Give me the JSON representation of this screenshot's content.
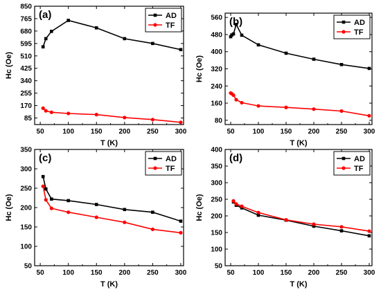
{
  "colors": {
    "AD": "#000000",
    "TF": "#ff0000"
  },
  "chart_data": [
    {
      "type": "line",
      "panel_label": "(a)",
      "xlabel": "T (K)",
      "ylabel": "Hc (Oe)",
      "xlim": [
        40,
        305
      ],
      "ylim": [
        40,
        850
      ],
      "xticks": [
        50,
        100,
        150,
        200,
        250,
        300
      ],
      "yticks": [
        85,
        170,
        255,
        340,
        425,
        510,
        595,
        680,
        765,
        850
      ],
      "legend": "top-right",
      "series": [
        {
          "name": "AD",
          "marker": "square",
          "x": [
            55,
            60,
            70,
            100,
            150,
            200,
            250,
            300
          ],
          "y": [
            572,
            628,
            678,
            753,
            702,
            628,
            595,
            553
          ]
        },
        {
          "name": "TF",
          "marker": "circle",
          "x": [
            55,
            60,
            70,
            100,
            150,
            200,
            250,
            300
          ],
          "y": [
            152,
            134,
            124,
            116,
            108,
            88,
            74,
            55
          ]
        }
      ]
    },
    {
      "type": "line",
      "panel_label": "(b)",
      "xlabel": "T (K)",
      "ylabel": "Hc (Oe)",
      "xlim": [
        40,
        305
      ],
      "ylim": [
        60,
        580
      ],
      "xticks": [
        50,
        100,
        150,
        200,
        250,
        300
      ],
      "yticks": [
        80,
        160,
        240,
        320,
        400,
        480,
        560
      ],
      "legend": "top-right",
      "series": [
        {
          "name": "AD",
          "marker": "square",
          "x": [
            50,
            52,
            55,
            60,
            70,
            100,
            150,
            200,
            250,
            300
          ],
          "y": [
            470,
            478,
            483,
            527,
            477,
            432,
            393,
            365,
            340,
            322
          ]
        },
        {
          "name": "TF",
          "marker": "circle",
          "x": [
            50,
            52,
            55,
            60,
            70,
            100,
            150,
            200,
            250,
            300
          ],
          "y": [
            207,
            204,
            197,
            176,
            162,
            147,
            140,
            132,
            123,
            101
          ]
        }
      ]
    },
    {
      "type": "line",
      "panel_label": "(c)",
      "xlabel": "T (K)",
      "ylabel": "Hc (Oe)",
      "xlim": [
        40,
        305
      ],
      "ylim": [
        50,
        350
      ],
      "xticks": [
        50,
        100,
        150,
        200,
        250,
        300
      ],
      "yticks": [
        50,
        100,
        150,
        200,
        250,
        300,
        350
      ],
      "legend": "top-right",
      "series": [
        {
          "name": "AD",
          "marker": "square",
          "x": [
            55,
            60,
            70,
            100,
            150,
            200,
            250,
            300
          ],
          "y": [
            280,
            248,
            222,
            218,
            208,
            195,
            188,
            165
          ]
        },
        {
          "name": "TF",
          "marker": "circle",
          "x": [
            55,
            60,
            70,
            100,
            150,
            200,
            250,
            300
          ],
          "y": [
            255,
            220,
            198,
            188,
            175,
            162,
            144,
            135
          ]
        }
      ]
    },
    {
      "type": "line",
      "panel_label": "(d)",
      "xlabel": "T (K)",
      "ylabel": "Hc (Oe)",
      "xlim": [
        40,
        305
      ],
      "ylim": [
        50,
        400
      ],
      "xticks": [
        50,
        100,
        150,
        200,
        250,
        300
      ],
      "yticks": [
        50,
        100,
        150,
        200,
        250,
        300,
        350,
        400
      ],
      "legend": "top-right",
      "series": [
        {
          "name": "AD",
          "marker": "square",
          "x": [
            55,
            60,
            70,
            100,
            150,
            200,
            250,
            300
          ],
          "y": [
            242,
            232,
            224,
            202,
            187,
            169,
            155,
            140
          ]
        },
        {
          "name": "TF",
          "marker": "circle",
          "x": [
            55,
            60,
            70,
            100,
            150,
            200,
            250,
            300
          ],
          "y": [
            245,
            236,
            229,
            210,
            188,
            175,
            167,
            154
          ]
        }
      ]
    }
  ]
}
